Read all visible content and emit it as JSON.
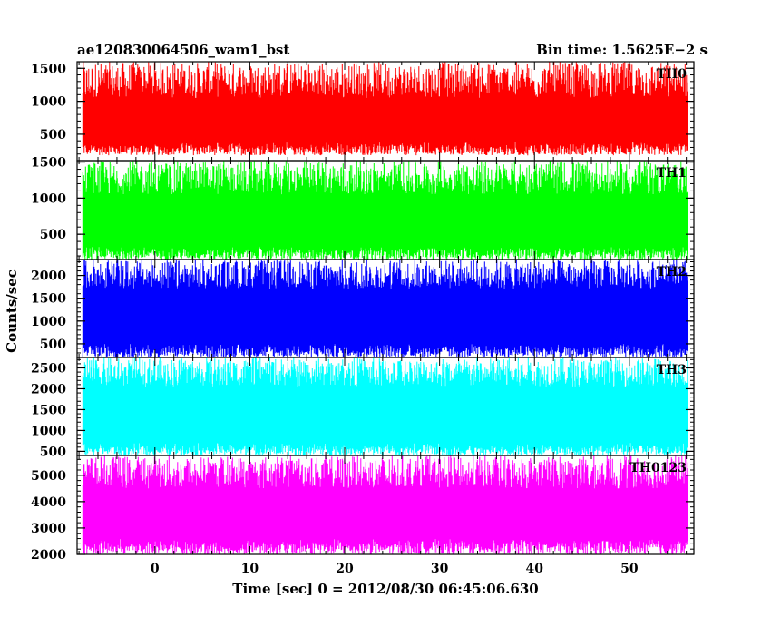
{
  "header": {
    "left_title": "ae120830064506_wam1_bst",
    "right_title": "Bin time: 1.5625E−2 s"
  },
  "axes": {
    "xlabel": "Time [sec] 0 = 2012/08/30 06:45:06.630",
    "ylabel": "Counts/sec"
  },
  "chart_data": {
    "type": "line",
    "xlim": [
      -8.2,
      56.8
    ],
    "x_range": [
      -7.6,
      56.2
    ],
    "bin_time": 0.015625,
    "x_ticks": [
      0,
      10,
      20,
      30,
      40,
      50
    ],
    "x_tick_labels": [
      "0",
      "10",
      "20",
      "30",
      "40",
      "50"
    ],
    "x_minor_step": 2,
    "series": [
      {
        "name": "TH0",
        "color": "#ff0000",
        "ylim": [
          100,
          1600
        ],
        "ticks": [
          500,
          1000,
          1500
        ],
        "minor_step": 100,
        "low": [
          180,
          380
        ],
        "high": [
          1050,
          1600
        ]
      },
      {
        "name": "TH1",
        "color": "#00ff00",
        "ylim": [
          150,
          1520
        ],
        "ticks": [
          500,
          1000,
          1500
        ],
        "minor_step": 100,
        "low": [
          150,
          330
        ],
        "high": [
          1050,
          1520
        ]
      },
      {
        "name": "TH2",
        "color": "#0000ff",
        "ylim": [
          200,
          2350
        ],
        "ticks": [
          500,
          1000,
          1500,
          2000
        ],
        "minor_step": 100,
        "low": [
          200,
          500
        ],
        "high": [
          1700,
          2350
        ]
      },
      {
        "name": "TH3",
        "color": "#00ffff",
        "ylim": [
          400,
          2750
        ],
        "ticks": [
          500,
          1000,
          1500,
          2000,
          2500
        ],
        "minor_step": 100,
        "low": [
          400,
          700
        ],
        "high": [
          2050,
          2750
        ]
      },
      {
        "name": "TH0123",
        "color": "#ff00ff",
        "ylim": [
          2000,
          5750
        ],
        "ticks": [
          2000,
          3000,
          4000,
          5000
        ],
        "minor_step": 200,
        "low": [
          2000,
          2600
        ],
        "high": [
          4500,
          5750
        ]
      }
    ]
  }
}
